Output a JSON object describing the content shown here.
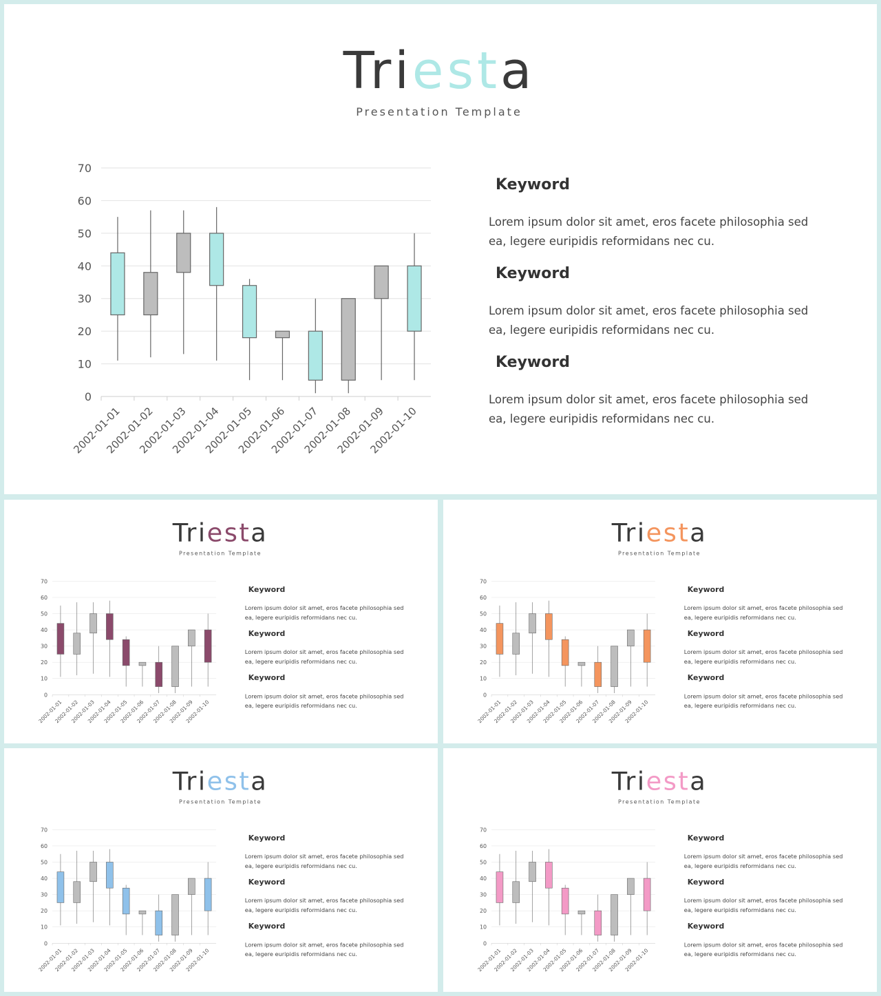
{
  "slides": [
    {
      "title_parts": [
        "Tri",
        "est",
        "a"
      ],
      "subtitle": "Presentation Template",
      "keywords": [
        {
          "heading": "Keyword",
          "text": "Lorem ipsum dolor sit amet, eros facete philosophia sed ea, legere euripidis reformidans nec cu."
        },
        {
          "heading": "Keyword",
          "text": "Lorem ipsum dolor sit amet, eros facete philosophia sed ea, legere euripidis reformidans nec cu."
        },
        {
          "heading": "Keyword",
          "text": "Lorem ipsum dolor sit amet, eros facete philosophia sed ea, legere euripidis reformidans nec cu."
        }
      ]
    },
    {
      "title_parts": [
        "Tri",
        "est",
        "a"
      ],
      "subtitle": "Presentation Template",
      "keywords": [
        {
          "heading": "Keyword",
          "text": "Lorem ipsum dolor sit amet, eros facete philosophia sed ea, legere euripidis reformidans nec cu."
        },
        {
          "heading": "Keyword",
          "text": "Lorem ipsum dolor sit amet, eros facete philosophia sed ea, legere euripidis reformidans nec cu."
        },
        {
          "heading": "Keyword",
          "text": "Lorem ipsum dolor sit amet, eros facete philosophia sed ea, legere euripidis reformidans nec cu."
        }
      ]
    },
    {
      "title_parts": [
        "Tri",
        "est",
        "a"
      ],
      "subtitle": "Presentation Template",
      "keywords": [
        {
          "heading": "Keyword",
          "text": "Lorem ipsum dolor sit amet, eros facete philosophia sed ea, legere euripidis reformidans nec cu."
        },
        {
          "heading": "Keyword",
          "text": "Lorem ipsum dolor sit amet, eros facete philosophia sed ea, legere euripidis reformidans nec cu."
        },
        {
          "heading": "Keyword",
          "text": "Lorem ipsum dolor sit amet, eros facete philosophia sed ea, legere euripidis reformidans nec cu."
        }
      ]
    },
    {
      "title_parts": [
        "Tri",
        "est",
        "a"
      ],
      "subtitle": "Presentation Template",
      "keywords": [
        {
          "heading": "Keyword",
          "text": "Lorem ipsum dolor sit amet, eros facete philosophia sed ea, legere euripidis reformidans nec cu."
        },
        {
          "heading": "Keyword",
          "text": "Lorem ipsum dolor sit amet, eros facete philosophia sed ea, legere euripidis reformidans nec cu."
        },
        {
          "heading": "Keyword",
          "text": "Lorem ipsum dolor sit amet, eros facete philosophia sed ea, legere euripidis reformidans nec cu."
        }
      ]
    },
    {
      "title_parts": [
        "Tri",
        "est",
        "a"
      ],
      "subtitle": "Presentation Template",
      "keywords": [
        {
          "heading": "Keyword",
          "text": "Lorem ipsum dolor sit amet, eros facete philosophia sed ea, legere euripidis reformidans nec cu."
        },
        {
          "heading": "Keyword",
          "text": "Lorem ipsum dolor sit amet, eros facete philosophia sed ea, legere euripidis reformidans nec cu."
        },
        {
          "heading": "Keyword",
          "text": "Lorem ipsum dolor sit amet, eros facete philosophia sed ea, legere euripidis reformidans nec cu."
        }
      ]
    }
  ],
  "chart_data": [
    {
      "type": "candlestick",
      "up_color": "#aee8e6",
      "down_color": "#bdbdbd",
      "categories": [
        "2002-01-01",
        "2002-01-02",
        "2002-01-03",
        "2002-01-04",
        "2002-01-05",
        "2002-01-06",
        "2002-01-07",
        "2002-01-08",
        "2002-01-09",
        "2002-01-10"
      ],
      "open": [
        25,
        38,
        50,
        34,
        18,
        20,
        5,
        30,
        40,
        20
      ],
      "high": [
        55,
        57,
        57,
        58,
        36,
        20,
        30,
        30,
        40,
        50
      ],
      "low": [
        11,
        12,
        13,
        11,
        5,
        5,
        1,
        1,
        5,
        5
      ],
      "close": [
        44,
        25,
        38,
        50,
        34,
        18,
        20,
        5,
        30,
        40
      ],
      "ylim": [
        0,
        70
      ],
      "yticks": [
        0,
        10,
        20,
        30,
        40,
        50,
        60,
        70
      ],
      "grid": true
    },
    {
      "type": "candlestick",
      "up_color": "#8b4a6b",
      "down_color": "#bdbdbd",
      "categories": [
        "2002-01-01",
        "2002-01-02",
        "2002-01-03",
        "2002-01-04",
        "2002-01-05",
        "2002-01-06",
        "2002-01-07",
        "2002-01-08",
        "2002-01-09",
        "2002-01-10"
      ],
      "open": [
        25,
        38,
        50,
        34,
        18,
        20,
        5,
        30,
        40,
        20
      ],
      "high": [
        55,
        57,
        57,
        58,
        36,
        20,
        30,
        30,
        40,
        50
      ],
      "low": [
        11,
        12,
        13,
        11,
        5,
        5,
        1,
        1,
        5,
        5
      ],
      "close": [
        44,
        25,
        38,
        50,
        34,
        18,
        20,
        5,
        30,
        40
      ],
      "ylim": [
        0,
        70
      ],
      "yticks": [
        0,
        10,
        20,
        30,
        40,
        50,
        60,
        70
      ],
      "grid": true
    },
    {
      "type": "candlestick",
      "up_color": "#f4955e",
      "down_color": "#bdbdbd",
      "categories": [
        "2002-01-01",
        "2002-01-02",
        "2002-01-03",
        "2002-01-04",
        "2002-01-05",
        "2002-01-06",
        "2002-01-07",
        "2002-01-08",
        "2002-01-09",
        "2002-01-10"
      ],
      "open": [
        25,
        38,
        50,
        34,
        18,
        20,
        5,
        30,
        40,
        20
      ],
      "high": [
        55,
        57,
        57,
        58,
        36,
        20,
        30,
        30,
        40,
        50
      ],
      "low": [
        11,
        12,
        13,
        11,
        5,
        5,
        1,
        1,
        5,
        5
      ],
      "close": [
        44,
        25,
        38,
        50,
        34,
        18,
        20,
        5,
        30,
        40
      ],
      "ylim": [
        0,
        70
      ],
      "yticks": [
        0,
        10,
        20,
        30,
        40,
        50,
        60,
        70
      ],
      "grid": true
    },
    {
      "type": "candlestick",
      "up_color": "#8fc1ea",
      "down_color": "#bdbdbd",
      "categories": [
        "2002-01-01",
        "2002-01-02",
        "2002-01-03",
        "2002-01-04",
        "2002-01-05",
        "2002-01-06",
        "2002-01-07",
        "2002-01-08",
        "2002-01-09",
        "2002-01-10"
      ],
      "open": [
        25,
        38,
        50,
        34,
        18,
        20,
        5,
        30,
        40,
        20
      ],
      "high": [
        55,
        57,
        57,
        58,
        36,
        20,
        30,
        30,
        40,
        50
      ],
      "low": [
        11,
        12,
        13,
        11,
        5,
        5,
        1,
        1,
        5,
        5
      ],
      "close": [
        44,
        25,
        38,
        50,
        34,
        18,
        20,
        5,
        30,
        40
      ],
      "ylim": [
        0,
        70
      ],
      "yticks": [
        0,
        10,
        20,
        30,
        40,
        50,
        60,
        70
      ],
      "grid": true
    },
    {
      "type": "candlestick",
      "up_color": "#f39ac6",
      "down_color": "#bdbdbd",
      "categories": [
        "2002-01-01",
        "2002-01-02",
        "2002-01-03",
        "2002-01-04",
        "2002-01-05",
        "2002-01-06",
        "2002-01-07",
        "2002-01-08",
        "2002-01-09",
        "2002-01-10"
      ],
      "open": [
        25,
        38,
        50,
        34,
        18,
        20,
        5,
        30,
        40,
        20
      ],
      "high": [
        55,
        57,
        57,
        58,
        36,
        20,
        30,
        30,
        40,
        50
      ],
      "low": [
        11,
        12,
        13,
        11,
        5,
        5,
        1,
        1,
        5,
        5
      ],
      "close": [
        44,
        25,
        38,
        50,
        34,
        18,
        20,
        5,
        30,
        40
      ],
      "ylim": [
        0,
        70
      ],
      "yticks": [
        0,
        10,
        20,
        30,
        40,
        50,
        60,
        70
      ],
      "grid": true
    }
  ]
}
